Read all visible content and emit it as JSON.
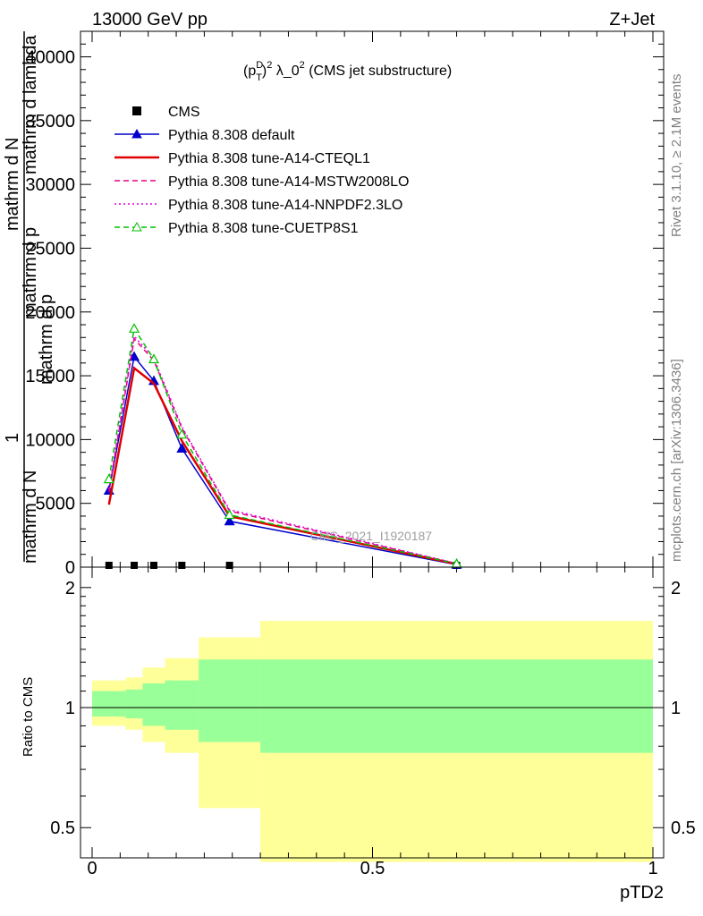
{
  "header": {
    "left": "13000 GeV pp",
    "right": "Z+Jet"
  },
  "side": {
    "rivet": "Rivet 3.1.10, ≥ 2.1M events",
    "mcplots": "mcplots.cern.ch [arXiv:1306.3436]"
  },
  "watermark": "CMS_2021_I1920187",
  "chart_data": [
    {
      "type": "line",
      "title": "(p_T^D)^2 λ_0^2 (CMS jet substructure)",
      "title_parts": {
        "a": "(p",
        "sup1": "D",
        "sub1": "T",
        "b": ")",
        "sup2": "2",
        "c": " λ_0",
        "sup3": "2",
        "d": " (CMS jet substructure)"
      },
      "ylabel_lines": [
        "mathrm d N",
        "mathrm d p",
        "mathrm d p",
        "mathrm d N",
        "mathrm d lambda",
        "1"
      ],
      "ylim": [
        0,
        42000
      ],
      "xlim": [
        0,
        1
      ],
      "yticks": [
        0,
        5000,
        10000,
        15000,
        20000,
        25000,
        30000,
        35000,
        40000
      ],
      "ytick_labels": [
        "0",
        "5000",
        "10000",
        "15000",
        "20000",
        "25000",
        "30000",
        "35000",
        "40000"
      ],
      "legend_position": "top-left",
      "x": [
        0.03,
        0.075,
        0.11,
        0.16,
        0.245,
        0.65
      ],
      "series": [
        {
          "name": "CMS",
          "style": "data",
          "color": "#000000",
          "values": [
            0.35,
            0.35,
            0.35,
            0.35,
            0.35,
            0.35
          ]
        },
        {
          "name": "Pythia 8.308 default",
          "style": "solid",
          "marker": "triangle-filled",
          "color": "#0000cc",
          "values": [
            6000,
            16500,
            14600,
            9300,
            3600,
            200
          ]
        },
        {
          "name": "Pythia 8.308 tune-A14-CTEQL1",
          "style": "solid-thick",
          "marker": "none",
          "color": "#e00000",
          "values": [
            4900,
            15600,
            14400,
            9900,
            4000,
            250
          ]
        },
        {
          "name": "Pythia 8.308 tune-A14-MSTW2008LO",
          "style": "dashed",
          "marker": "none",
          "color": "#e8007e",
          "values": [
            5900,
            17900,
            16200,
            10900,
            4400,
            280
          ]
        },
        {
          "name": "Pythia 8.308 tune-A14-NNPDF2.3LO",
          "style": "dotted",
          "marker": "none",
          "color": "#e000e0",
          "values": [
            6100,
            18100,
            16400,
            11000,
            4500,
            290
          ]
        },
        {
          "name": "Pythia 8.308 tune-CUETP8S1",
          "style": "dashed",
          "marker": "triangle-open",
          "color": "#00c000",
          "values": [
            6900,
            18700,
            16300,
            10400,
            4100,
            270
          ]
        }
      ]
    },
    {
      "type": "area",
      "ylabel": "Ratio to CMS",
      "xlabel": "pTD2",
      "ylim": [
        0.42,
        2.25
      ],
      "xlim": [
        0,
        1
      ],
      "yticks": [
        0.5,
        1,
        2
      ],
      "ytick_labels": [
        "0.5",
        "1",
        "2"
      ],
      "xticks": [
        0,
        0.5,
        1
      ],
      "xtick_labels": [
        "0",
        "0.5",
        "1"
      ],
      "bin_edges": [
        0,
        0.06,
        0.09,
        0.13,
        0.19,
        0.3,
        1.0
      ],
      "yellow_band_low": [
        0.9,
        0.88,
        0.82,
        0.77,
        0.56,
        0.41
      ],
      "yellow_band_high": [
        1.17,
        1.19,
        1.26,
        1.33,
        1.5,
        1.65
      ],
      "green_band_low": [
        0.95,
        0.94,
        0.9,
        0.88,
        0.82,
        0.77
      ],
      "green_band_high": [
        1.1,
        1.11,
        1.15,
        1.17,
        1.32,
        1.32
      ],
      "reference": 1
    }
  ]
}
